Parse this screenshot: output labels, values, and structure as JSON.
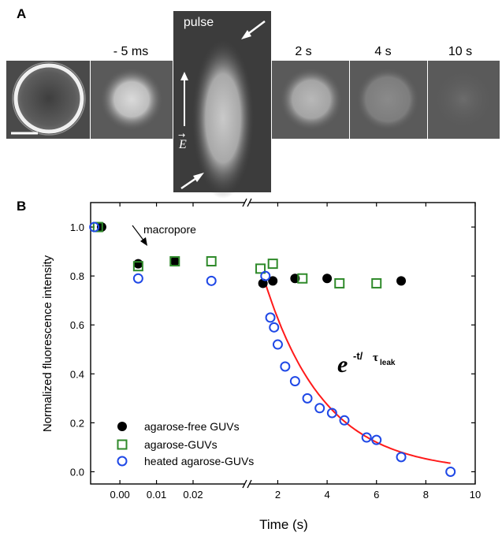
{
  "panel_a": {
    "letter": "A",
    "frame_labels": [
      "- 5 ms",
      "2 s",
      "4 s",
      "10 s"
    ],
    "pulse_label": "pulse",
    "field_label": "E",
    "field_arrow_glyph": "→"
  },
  "panel_b": {
    "letter": "B",
    "annotation": "macropore",
    "equation": {
      "base": "e",
      "exp": "-t/",
      "tau": "τ",
      "tau_sub": "leak"
    }
  },
  "colors": {
    "black_series": "#000000",
    "green_series": "#2f8a2a",
    "blue_series": "#1f48e6",
    "fit_curve": "#ff1a1a"
  },
  "chart_data": {
    "type": "scatter",
    "xlabel": "Time (s)",
    "ylabel": "Normalized fluorescence intensity",
    "ylim": [
      -0.05,
      1.1
    ],
    "y_ticks": [
      0.0,
      0.2,
      0.4,
      0.6,
      0.8,
      1.0
    ],
    "broken_x_axis": true,
    "segment1": {
      "unit": "s",
      "xlim": [
        -0.008,
        0.034
      ],
      "ticks": [
        0.0,
        0.01,
        0.02
      ],
      "tick_labels": [
        "0.00",
        "0.01",
        "0.02"
      ]
    },
    "segment2": {
      "unit": "s",
      "xlim": [
        0.9,
        10
      ],
      "ticks": [
        2,
        4,
        6,
        8,
        10
      ],
      "tick_labels": [
        "2",
        "4",
        "6",
        "8",
        "10"
      ]
    },
    "legend_position": "bottom-left",
    "series": [
      {
        "name": "agarose-free GUVs",
        "marker": "filled-circle",
        "seg1": [
          [
            -0.005,
            1.0
          ],
          [
            0.005,
            0.85
          ],
          [
            0.015,
            0.86
          ]
        ],
        "seg2": [
          [
            1.4,
            0.77
          ],
          [
            1.8,
            0.78
          ],
          [
            2.7,
            0.79
          ],
          [
            4.0,
            0.79
          ],
          [
            7.0,
            0.78
          ]
        ]
      },
      {
        "name": "agarose-GUVs",
        "marker": "open-square",
        "seg1": [
          [
            -0.006,
            1.0
          ],
          [
            0.005,
            0.84
          ],
          [
            0.015,
            0.86
          ],
          [
            0.025,
            0.86
          ]
        ],
        "seg2": [
          [
            1.3,
            0.83
          ],
          [
            1.8,
            0.85
          ],
          [
            3.0,
            0.79
          ],
          [
            4.5,
            0.77
          ],
          [
            6.0,
            0.77
          ]
        ]
      },
      {
        "name": "heated agarose-GUVs",
        "marker": "open-circle",
        "seg1": [
          [
            -0.007,
            1.0
          ],
          [
            0.005,
            0.79
          ],
          [
            0.025,
            0.78
          ]
        ],
        "seg2": [
          [
            1.5,
            0.8
          ],
          [
            1.7,
            0.63
          ],
          [
            1.85,
            0.59
          ],
          [
            2.0,
            0.52
          ],
          [
            2.3,
            0.43
          ],
          [
            2.7,
            0.37
          ],
          [
            3.2,
            0.3
          ],
          [
            3.7,
            0.26
          ],
          [
            4.2,
            0.24
          ],
          [
            4.7,
            0.21
          ],
          [
            5.6,
            0.14
          ],
          [
            6.0,
            0.13
          ],
          [
            7.0,
            0.06
          ],
          [
            9.0,
            0.0
          ]
        ]
      }
    ],
    "fit": {
      "name": "exponential fit",
      "x_start": 1.5,
      "x_end": 9.0,
      "y_start": 0.77,
      "y_end": 0.035
    }
  }
}
